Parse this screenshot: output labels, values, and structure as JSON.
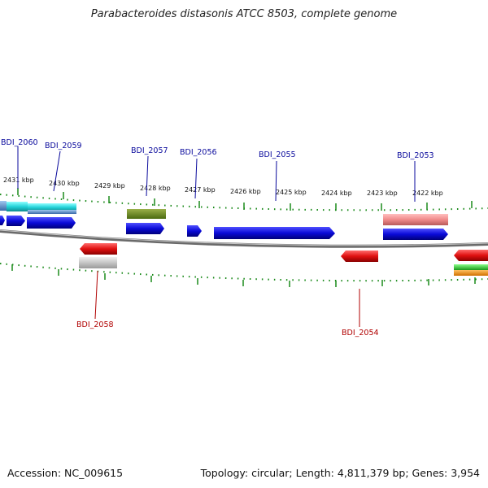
{
  "title": "Parabacteroides distasonis ATCC 8503, complete genome",
  "footer": {
    "accession": "Accession: NC_009615",
    "summary": "Topology: circular; Length: 4,811,379 bp; Genes: 3,954"
  },
  "kbp_labels": [
    "2431 kbp",
    "2430 kbp",
    "2429 kbp",
    "2428 kbp",
    "2427 kbp",
    "2426 kbp",
    "2425 kbp",
    "2424 kbp",
    "2423 kbp",
    "2422 kbp"
  ],
  "gene_labels_top": [
    "BDI_2060",
    "BDI_2059",
    "BDI_2057",
    "BDI_2056",
    "BDI_2055",
    "BDI_2053"
  ],
  "gene_labels_bottom": [
    "BDI_2058",
    "BDI_2054"
  ],
  "colors": {
    "forward_cds": "#0a0ad8",
    "reverse_cds": "#e01010",
    "top_label": "#0a0a9c",
    "bottom_label": "#b00000",
    "backbone": "#7a7a7a",
    "ticks": "#1a8a1a"
  }
}
